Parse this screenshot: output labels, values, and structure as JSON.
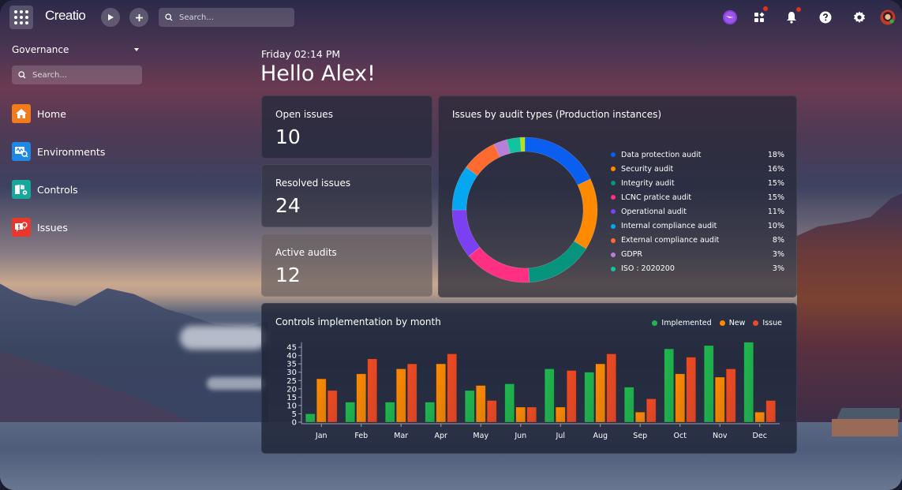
{
  "topbar": {
    "logo": "Creatio",
    "search_placeholder": "Search...",
    "icons": [
      "apps-grid-icon",
      "play-icon",
      "plus-icon",
      "search-icon",
      "ai-assistant-icon",
      "app-switcher-icon",
      "bell-icon",
      "help-icon",
      "gear-icon",
      "avatar"
    ]
  },
  "sidebar": {
    "workspace": "Governance",
    "search_placeholder": "Search...",
    "items": [
      {
        "label": "Home",
        "color": "#f07c1e"
      },
      {
        "label": "Environments",
        "color": "#1e88e5"
      },
      {
        "label": "Controls",
        "color": "#16a89a"
      },
      {
        "label": "Issues",
        "color": "#e8372c"
      }
    ]
  },
  "main": {
    "datetime": "Friday 02:14 PM",
    "greeting": "Hello Alex!",
    "kpis": [
      {
        "label": "Open issues",
        "value": "10"
      },
      {
        "label": "Resolved issues",
        "value": "24"
      },
      {
        "label": "Active audits",
        "value": "12"
      }
    ]
  },
  "chart_data": [
    {
      "type": "pie",
      "title": "Issues by audit types (Production instances)",
      "style": "donut",
      "categories": [
        "Data protection audit",
        "Security audit",
        "Integrity audit",
        "LCNC pratice audit",
        "Operational audit",
        "Internal compliance audit",
        "External compliance audit",
        "GDPR",
        "ISO : 2020200"
      ],
      "values": [
        18,
        16,
        15,
        15,
        11,
        10,
        8,
        3,
        3
      ],
      "labels": [
        "18%",
        "16%",
        "15%",
        "15%",
        "11%",
        "10%",
        "8%",
        "3%",
        "3%"
      ],
      "colors": [
        "#0a5ff0",
        "#ff8a00",
        "#06947f",
        "#ff2f82",
        "#7a40f2",
        "#05a8f0",
        "#ff6a2e",
        "#b77fd6",
        "#10c4a0"
      ],
      "extra_sliver_color": "#b8e010",
      "legend_position": "right"
    },
    {
      "type": "bar",
      "title": "Controls implementation by month",
      "categories": [
        "Jan",
        "Feb",
        "Mar",
        "Apr",
        "May",
        "Jun",
        "Jul",
        "Aug",
        "Sep",
        "Oct",
        "Nov",
        "Dec"
      ],
      "series": [
        {
          "name": "Implemented",
          "color": "#1fb84e",
          "values": [
            5,
            12,
            12,
            12,
            19,
            23,
            32,
            30,
            21,
            44,
            46,
            48
          ]
        },
        {
          "name": "New",
          "color": "#ff8a00",
          "values": [
            26,
            29,
            32,
            35,
            22,
            9,
            9,
            35,
            6,
            29,
            27,
            6
          ]
        },
        {
          "name": "Issue",
          "color": "#f04a22",
          "values": [
            19,
            38,
            35,
            41,
            13,
            9,
            31,
            41,
            14,
            39,
            32,
            13
          ]
        }
      ],
      "yticks": [
        0,
        5,
        10,
        15,
        20,
        25,
        30,
        35,
        40,
        45
      ],
      "ylim": [
        0,
        48
      ],
      "xlabel": "",
      "ylabel": "",
      "grid": false,
      "legend_position": "top-right"
    }
  ]
}
